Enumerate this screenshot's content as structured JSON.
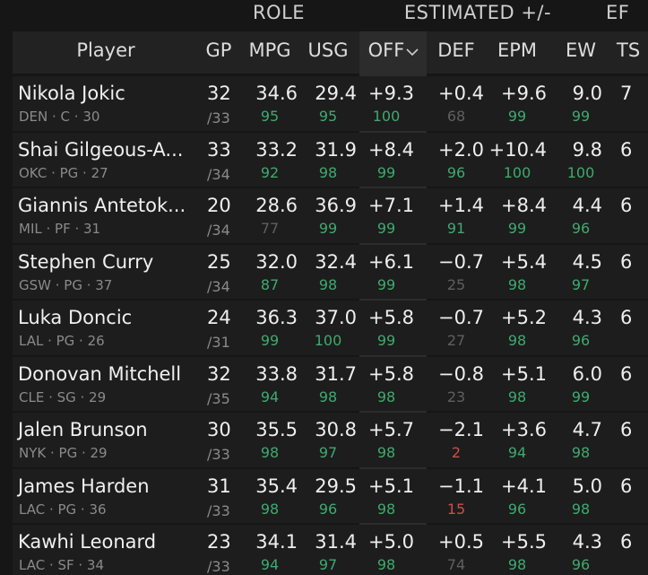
{
  "header": {
    "groups": [
      "ROLE",
      "ESTIMATED +/-",
      "EF"
    ],
    "columns": [
      "Player",
      "GP",
      "MPG",
      "USG",
      "OFF",
      "DEF",
      "EPM",
      "EW",
      "TS"
    ]
  },
  "table": {
    "rows": [
      {
        "player": "Nikola Jokic",
        "info": "DEN · C · 30",
        "gp": "32",
        "games": "/33",
        "stats": [
          [
            "34.6",
            "95"
          ],
          [
            "29.4",
            "95"
          ],
          [
            "+9.3",
            "100"
          ],
          [
            "+0.4",
            "68"
          ],
          [
            "+9.6",
            "99"
          ],
          [
            "9.0",
            "99"
          ]
        ],
        "ts": "7"
      },
      {
        "player": "Shai Gilgeous-A...",
        "info": "OKC · PG · 27",
        "gp": "33",
        "games": "/34",
        "stats": [
          [
            "33.2",
            "92"
          ],
          [
            "31.9",
            "98"
          ],
          [
            "+8.4",
            "99"
          ],
          [
            "+2.0",
            "96"
          ],
          [
            "+10.4",
            "100"
          ],
          [
            "9.8",
            "100"
          ]
        ],
        "ts": "6"
      },
      {
        "player": "Giannis Antetok...",
        "info": "MIL · PF · 31",
        "gp": "20",
        "games": "/34",
        "stats": [
          [
            "28.6",
            "77"
          ],
          [
            "36.9",
            "99"
          ],
          [
            "+7.1",
            "99"
          ],
          [
            "+1.4",
            "91"
          ],
          [
            "+8.4",
            "99"
          ],
          [
            "4.4",
            "96"
          ]
        ],
        "ts": "6"
      },
      {
        "player": "Stephen Curry",
        "info": "GSW · PG · 37",
        "gp": "25",
        "games": "/34",
        "stats": [
          [
            "32.0",
            "87"
          ],
          [
            "32.4",
            "98"
          ],
          [
            "+6.1",
            "99"
          ],
          [
            "−0.7",
            "25"
          ],
          [
            "+5.4",
            "98"
          ],
          [
            "4.5",
            "97"
          ]
        ],
        "ts": "6"
      },
      {
        "player": "Luka Doncic",
        "info": "LAL · PG · 26",
        "gp": "24",
        "games": "/31",
        "stats": [
          [
            "36.3",
            "99"
          ],
          [
            "37.0",
            "100"
          ],
          [
            "+5.8",
            "99"
          ],
          [
            "−0.7",
            "27"
          ],
          [
            "+5.2",
            "98"
          ],
          [
            "4.3",
            "96"
          ]
        ],
        "ts": "6"
      },
      {
        "player": "Donovan Mitchell",
        "info": "CLE · SG · 29",
        "gp": "32",
        "games": "/35",
        "stats": [
          [
            "33.8",
            "94"
          ],
          [
            "31.7",
            "98"
          ],
          [
            "+5.8",
            "98"
          ],
          [
            "−0.8",
            "23"
          ],
          [
            "+5.1",
            "98"
          ],
          [
            "6.0",
            "99"
          ]
        ],
        "ts": "6"
      },
      {
        "player": "Jalen Brunson",
        "info": "NYK · PG · 29",
        "gp": "30",
        "games": "/33",
        "stats": [
          [
            "35.5",
            "98"
          ],
          [
            "30.8",
            "97"
          ],
          [
            "+5.7",
            "98"
          ],
          [
            "−2.1",
            "2"
          ],
          [
            "+3.6",
            "94"
          ],
          [
            "4.7",
            "98"
          ]
        ],
        "ts": "6"
      },
      {
        "player": "James Harden",
        "info": "LAC · PG · 36",
        "gp": "31",
        "games": "/33",
        "stats": [
          [
            "35.4",
            "98"
          ],
          [
            "29.5",
            "96"
          ],
          [
            "+5.1",
            "98"
          ],
          [
            "−1.1",
            "15"
          ],
          [
            "+4.1",
            "96"
          ],
          [
            "5.0",
            "98"
          ]
        ],
        "ts": "6"
      },
      {
        "player": "Kawhi Leonard",
        "info": "LAC · SF · 34",
        "gp": "23",
        "games": "/33",
        "stats": [
          [
            "34.1",
            "94"
          ],
          [
            "31.4",
            "97"
          ],
          [
            "+5.0",
            "98"
          ],
          [
            "+0.5",
            "74"
          ],
          [
            "+5.5",
            "98"
          ],
          [
            "4.3",
            "96"
          ]
        ],
        "ts": "6"
      }
    ]
  }
}
